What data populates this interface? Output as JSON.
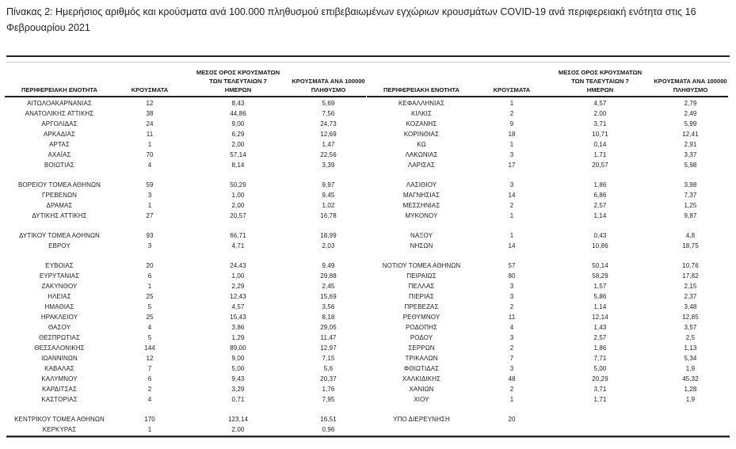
{
  "title": "Πίνακας 2:  Ημερήσιος αριθμός και κρούσματα ανά 100.000 πληθυσμού επιβεβαιωμένων εγχώριων κρουσμάτων COVID-19 ανά περιφερειακή ενότητα στις 16 Φεβρουαρίου 2021",
  "columns": {
    "region": "ΠΕΡΙΦΕΡΕΙΑΚΗ ΕΝΟΤΗΤΑ",
    "cases": "ΚΡΟΥΣΜΑΤΑ",
    "avg7": "ΜΕΣΟΣ ΟΡΟΣ ΚΡΟΥΣΜΑΤΩΝ\nΤΩΝ ΤΕΛΕΥΤΑΙΩΝ 7\nΗΜΕΡΩΝ",
    "per100k": "ΚΡΟΥΣΜΑΤΑ ΑΝΑ 100000\nΠΛΗΘΥΣΜΟ"
  },
  "left_table": {
    "rows": [
      {
        "region": "ΑΙΤΩΛΟΑΚΑΡΝΑΝΙΑΣ",
        "cases": "12",
        "avg7": "8,43",
        "per100k": "5,69"
      },
      {
        "region": "ΑΝΑΤΟΛΙΚΗΣ ΑΤΤΙΚΗΣ",
        "cases": "38",
        "avg7": "44,86",
        "per100k": "7,56"
      },
      {
        "region": "ΑΡΓΟΛΙΔΑΣ",
        "cases": "24",
        "avg7": "9,00",
        "per100k": "24,73"
      },
      {
        "region": "ΑΡΚΑΔΙΑΣ",
        "cases": "11",
        "avg7": "6,29",
        "per100k": "12,69"
      },
      {
        "region": "ΑΡΤΑΣ",
        "cases": "1",
        "avg7": "2,00",
        "per100k": "1,47"
      },
      {
        "region": "ΑΧΑΪΑΣ",
        "cases": "70",
        "avg7": "57,14",
        "per100k": "22,56"
      },
      {
        "region": "ΒΟΙΩΤΙΑΣ",
        "cases": "4",
        "avg7": "8,14",
        "per100k": "3,39"
      },
      {
        "region": "",
        "cases": "",
        "avg7": "",
        "per100k": ""
      },
      {
        "region": "ΒΟΡΕΙΟΥ ΤΟΜΕΑ ΑΘΗΝΩΝ",
        "cases": "59",
        "avg7": "50,29",
        "per100k": "9,97"
      },
      {
        "region": "ΓΡΕΒΕΝΩΝ",
        "cases": "3",
        "avg7": "1,00",
        "per100k": "9,45"
      },
      {
        "region": "ΔΡΑΜΑΣ",
        "cases": "1",
        "avg7": "2,00",
        "per100k": "1,02"
      },
      {
        "region": "ΔΥΤΙΚΗΣ ΑΤΤΙΚΗΣ",
        "cases": "27",
        "avg7": "20,57",
        "per100k": "16,78"
      },
      {
        "region": "",
        "cases": "",
        "avg7": "",
        "per100k": ""
      },
      {
        "region": "ΔΥΤΙΚΟΥ ΤΟΜΕΑ ΑΘΗΝΩΝ",
        "cases": "93",
        "avg7": "66,71",
        "per100k": "18,99"
      },
      {
        "region": "ΕΒΡΟΥ",
        "cases": "3",
        "avg7": "4,71",
        "per100k": "2,03"
      },
      {
        "region": "",
        "cases": "",
        "avg7": "",
        "per100k": ""
      },
      {
        "region": "ΕΥΒΟΙΑΣ",
        "cases": "20",
        "avg7": "24,43",
        "per100k": "9,49"
      },
      {
        "region": "ΕΥΡΥΤΑΝΙΑΣ",
        "cases": "6",
        "avg7": "1,00",
        "per100k": "29,88"
      },
      {
        "region": "ΖΑΚΥΝΘΟΥ",
        "cases": "1",
        "avg7": "2,29",
        "per100k": "2,45"
      },
      {
        "region": "ΗΛΕΙΑΣ",
        "cases": "25",
        "avg7": "12,43",
        "per100k": "15,69"
      },
      {
        "region": "ΗΜΑΘΙΑΣ",
        "cases": "5",
        "avg7": "4,57",
        "per100k": "3,56"
      },
      {
        "region": "ΗΡΑΚΛΕΙΟΥ",
        "cases": "25",
        "avg7": "15,43",
        "per100k": "8,18"
      },
      {
        "region": "ΘΑΣΟΥ",
        "cases": "4",
        "avg7": "3,86",
        "per100k": "29,05"
      },
      {
        "region": "ΘΕΣΠΡΩΤΙΑΣ",
        "cases": "5",
        "avg7": "1,29",
        "per100k": "11,47"
      },
      {
        "region": "ΘΕΣΣΑΛΟΝΙΚΗΣ",
        "cases": "144",
        "avg7": "89,00",
        "per100k": "12,97"
      },
      {
        "region": "ΙΩΑΝΝΙΝΩΝ",
        "cases": "12",
        "avg7": "9,00",
        "per100k": "7,15"
      },
      {
        "region": "ΚΑΒΑΛΑΣ",
        "cases": "7",
        "avg7": "5,00",
        "per100k": "5,6"
      },
      {
        "region": "ΚΑΛΥΜΝΟΥ",
        "cases": "6",
        "avg7": "9,43",
        "per100k": "20,37"
      },
      {
        "region": "ΚΑΡΔΙΤΣΑΣ",
        "cases": "2",
        "avg7": "3,29",
        "per100k": "1,76"
      },
      {
        "region": "ΚΑΣΤΟΡΙΑΣ",
        "cases": "4",
        "avg7": "0,71",
        "per100k": "7,95"
      },
      {
        "region": "",
        "cases": "",
        "avg7": "",
        "per100k": ""
      },
      {
        "region": "ΚΕΝΤΡΙΚΟΥ ΤΟΜΕΑ ΑΘΗΝΩΝ",
        "cases": "170",
        "avg7": "123,14",
        "per100k": "16,51"
      },
      {
        "region": "ΚΕΡΚΥΡΑΣ",
        "cases": "1",
        "avg7": "2,00",
        "per100k": "0,96"
      }
    ]
  },
  "right_table": {
    "rows": [
      {
        "region": "ΚΕΦΑΛΛΗΝΙΑΣ",
        "cases": "1",
        "avg7": "4,57",
        "per100k": "2,79"
      },
      {
        "region": "ΚΙΛΚΙΣ",
        "cases": "2",
        "avg7": "2,00",
        "per100k": "2,49"
      },
      {
        "region": "ΚΟΖΑΝΗΣ",
        "cases": "9",
        "avg7": "3,71",
        "per100k": "5,99"
      },
      {
        "region": "ΚΟΡΙΝΘΙΑΣ",
        "cases": "18",
        "avg7": "10,71",
        "per100k": "12,41"
      },
      {
        "region": "ΚΩ",
        "cases": "1",
        "avg7": "0,14",
        "per100k": "2,91"
      },
      {
        "region": "ΛΑΚΩΝΙΑΣ",
        "cases": "3",
        "avg7": "1,71",
        "per100k": "3,37"
      },
      {
        "region": "ΛΑΡΙΣΑΣ",
        "cases": "17",
        "avg7": "20,57",
        "per100k": "5,98"
      },
      {
        "region": "",
        "cases": "",
        "avg7": "",
        "per100k": ""
      },
      {
        "region": "ΛΑΣΙΘΙΟΥ",
        "cases": "3",
        "avg7": "1,86",
        "per100k": "3,98"
      },
      {
        "region": "ΜΑΓΝΗΣΙΑΣ",
        "cases": "14",
        "avg7": "6,86",
        "per100k": "7,37"
      },
      {
        "region": "ΜΕΣΣΗΝΙΑΣ",
        "cases": "2",
        "avg7": "2,57",
        "per100k": "1,25"
      },
      {
        "region": "ΜΥΚΟΝΟΥ",
        "cases": "1",
        "avg7": "1,14",
        "per100k": "9,87"
      },
      {
        "region": "",
        "cases": "",
        "avg7": "",
        "per100k": ""
      },
      {
        "region": "ΝΑΞΟΥ",
        "cases": "1",
        "avg7": "0,43",
        "per100k": "4,8"
      },
      {
        "region": "ΝΗΣΩΝ",
        "cases": "14",
        "avg7": "10,86",
        "per100k": "18,75"
      },
      {
        "region": "",
        "cases": "",
        "avg7": "",
        "per100k": ""
      },
      {
        "region": "ΝΟΤΙΟΥ ΤΟΜΕΑ ΑΘΗΝΩΝ",
        "cases": "57",
        "avg7": "50,14",
        "per100k": "10,76"
      },
      {
        "region": "ΠΕΙΡΑΙΩΣ",
        "cases": "80",
        "avg7": "58,29",
        "per100k": "17,82"
      },
      {
        "region": "ΠΕΛΛΑΣ",
        "cases": "3",
        "avg7": "1,57",
        "per100k": "2,15"
      },
      {
        "region": "ΠΙΕΡΙΑΣ",
        "cases": "3",
        "avg7": "5,86",
        "per100k": "2,37"
      },
      {
        "region": "ΠΡΕΒΕΖΑΣ",
        "cases": "2",
        "avg7": "1,14",
        "per100k": "3,48"
      },
      {
        "region": "ΡΕΘΥΜΝΟΥ",
        "cases": "11",
        "avg7": "12,14",
        "per100k": "12,85"
      },
      {
        "region": "ΡΟΔΟΠΗΣ",
        "cases": "4",
        "avg7": "1,43",
        "per100k": "3,57"
      },
      {
        "region": "ΡΟΔΟΥ",
        "cases": "3",
        "avg7": "2,57",
        "per100k": "2,5"
      },
      {
        "region": "ΣΕΡΡΩΝ",
        "cases": "2",
        "avg7": "1,86",
        "per100k": "1,13"
      },
      {
        "region": "ΤΡΙΚΑΛΩΝ",
        "cases": "7",
        "avg7": "7,71",
        "per100k": "5,34"
      },
      {
        "region": "ΦΘΙΩΤΙΔΑΣ",
        "cases": "3",
        "avg7": "5,00",
        "per100k": "1,9"
      },
      {
        "region": "ΧΑΛΚΙΔΙΚΗΣ",
        "cases": "48",
        "avg7": "20,29",
        "per100k": "45,32"
      },
      {
        "region": "ΧΑΝΙΩΝ",
        "cases": "2",
        "avg7": "3,71",
        "per100k": "1,28"
      },
      {
        "region": "ΧΙΟΥ",
        "cases": "1",
        "avg7": "1,71",
        "per100k": "1,9"
      },
      {
        "region": "",
        "cases": "",
        "avg7": "",
        "per100k": ""
      },
      {
        "region": "ΥΠΟ ΔΙΕΡΕΥΝΗΣΗ",
        "cases": "20",
        "avg7": "",
        "per100k": ""
      },
      {
        "region": "",
        "cases": "",
        "avg7": "",
        "per100k": ""
      }
    ]
  }
}
